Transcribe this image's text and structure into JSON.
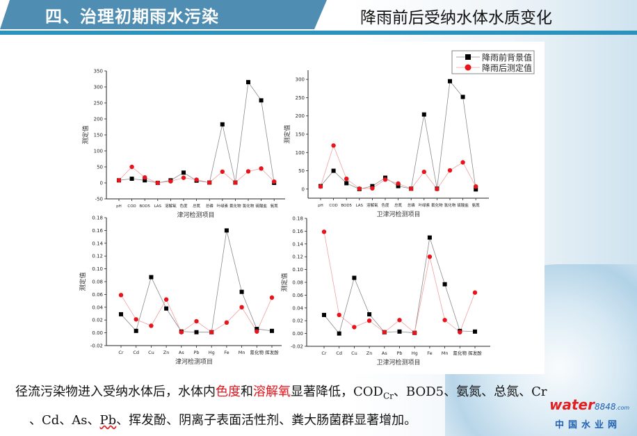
{
  "header": {
    "section_title": "四、治理初期雨水污染",
    "slide_title": "降雨前后受纳水体水质变化"
  },
  "legend": {
    "before": "降雨前背景值",
    "after": "降雨后测定值"
  },
  "colors": {
    "banner": "#4f8db2",
    "rule": "#2a92bb",
    "before_marker": "#000000",
    "before_line": "#8a8a8a",
    "after_marker": "#e8141c",
    "after_line": "#f2a0a0",
    "highlight_text": "#e0141c"
  },
  "summary": {
    "line1_a": "径流污染物进入受纳水体后，水体内",
    "line1_red1": "色度",
    "line1_b": "和",
    "line1_red2": "溶解氧",
    "line1_c": "显著降低，COD",
    "line1_sub": "Cr",
    "line1_d": "、BOD5、氨氮、总氮、Cr",
    "line2_a": "、Cd、As、",
    "line2_pb": "Pb",
    "line2_b": "、挥发酚、阴离子表面活性剂、粪大肠菌群显著增加。"
  },
  "watermark": {
    "brand": "water",
    "brand_num": "8848",
    "brand_com": ".com",
    "brand_cn": "中国水业网"
  },
  "chart_data": [
    {
      "type": "line",
      "xlabel": "津河检测项目",
      "ylabel": "测定值",
      "categories": [
        "pH",
        "COD",
        "BOD5",
        "LAS",
        "溶解氧",
        "色度",
        "总氮",
        "总磷",
        "叶绿素",
        "氟化物",
        "氯化物",
        "硫酸盐",
        "氨氮"
      ],
      "ylim": [
        -50,
        350
      ],
      "yticks": [
        -50,
        0,
        50,
        100,
        150,
        200,
        250,
        300,
        350
      ],
      "series": [
        {
          "name": "降雨前背景值",
          "marker": "square",
          "values": [
            8,
            13,
            8,
            0,
            8,
            32,
            7,
            1,
            183,
            1,
            315,
            258,
            0
          ]
        },
        {
          "name": "降雨后测定值",
          "marker": "circle",
          "values": [
            8,
            50,
            17,
            0,
            5,
            16,
            10,
            1,
            35,
            1,
            36,
            45,
            4
          ]
        }
      ],
      "grid": false
    },
    {
      "type": "line",
      "xlabel": "卫津河检测项目",
      "ylabel": "测定值",
      "categories": [
        "pH",
        "COD",
        "BOD5",
        "LAS",
        "溶解氧",
        "色度",
        "总氮",
        "总磷",
        "叶绿素",
        "氟化物",
        "氯化物",
        "硫酸盐",
        "氨氮"
      ],
      "ylim": [
        -25,
        325
      ],
      "yticks": [
        0,
        50,
        100,
        150,
        200,
        250,
        300
      ],
      "series": [
        {
          "name": "降雨前背景值",
          "marker": "square",
          "values": [
            8,
            50,
            16,
            0,
            8,
            31,
            8,
            1,
            204,
            1,
            295,
            252,
            -1
          ]
        },
        {
          "name": "降雨后测定值",
          "marker": "circle",
          "values": [
            7,
            119,
            28,
            1,
            2,
            26,
            15,
            1,
            47,
            0,
            51,
            73,
            7
          ]
        }
      ],
      "legend": "top-right",
      "grid": false
    },
    {
      "type": "line",
      "xlabel": "津河检测项目",
      "ylabel": "测定值",
      "categories": [
        "Cr",
        "Cd",
        "Cu",
        "Zn",
        "As",
        "Pb",
        "Hg",
        "Fe",
        "Mn",
        "氰化物",
        "挥发酚"
      ],
      "ylim": [
        -0.02,
        0.18
      ],
      "yticks": [
        -0.02,
        0.0,
        0.02,
        0.04,
        0.06,
        0.08,
        0.1,
        0.12,
        0.14,
        0.16,
        0.18
      ],
      "series": [
        {
          "name": "降雨前背景值",
          "marker": "square",
          "values": [
            0.029,
            0.003,
            0.087,
            0.038,
            0.002,
            0.001,
            0.001,
            0.16,
            0.064,
            0.006,
            0.003
          ]
        },
        {
          "name": "降雨后测定值",
          "marker": "circle",
          "values": [
            0.059,
            0.021,
            0.011,
            0.052,
            0.001,
            0.018,
            0.001,
            0.016,
            0.04,
            0.002,
            0.055
          ]
        }
      ],
      "grid": false
    },
    {
      "type": "line",
      "xlabel": "卫津河检测项目",
      "ylabel": "测定值",
      "categories": [
        "Cr",
        "Cd",
        "Cu",
        "Zn",
        "As",
        "Pb",
        "Hg",
        "Fe",
        "Mn",
        "氰化物",
        "挥发酚"
      ],
      "ylim": [
        -0.02,
        0.18
      ],
      "yticks": [
        -0.02,
        0.0,
        0.02,
        0.04,
        0.06,
        0.08,
        0.1,
        0.12,
        0.14,
        0.16,
        0.18
      ],
      "series": [
        {
          "name": "降雨前背景值",
          "marker": "square",
          "values": [
            0.029,
            0.0,
            0.087,
            0.03,
            0.002,
            0.003,
            0.001,
            0.15,
            0.077,
            0.004,
            0.003
          ]
        },
        {
          "name": "降雨后测定值",
          "marker": "circle",
          "values": [
            0.159,
            0.029,
            0.01,
            0.02,
            0.002,
            0.021,
            0.001,
            0.12,
            0.021,
            0.002,
            0.064
          ]
        }
      ],
      "grid": false
    }
  ]
}
